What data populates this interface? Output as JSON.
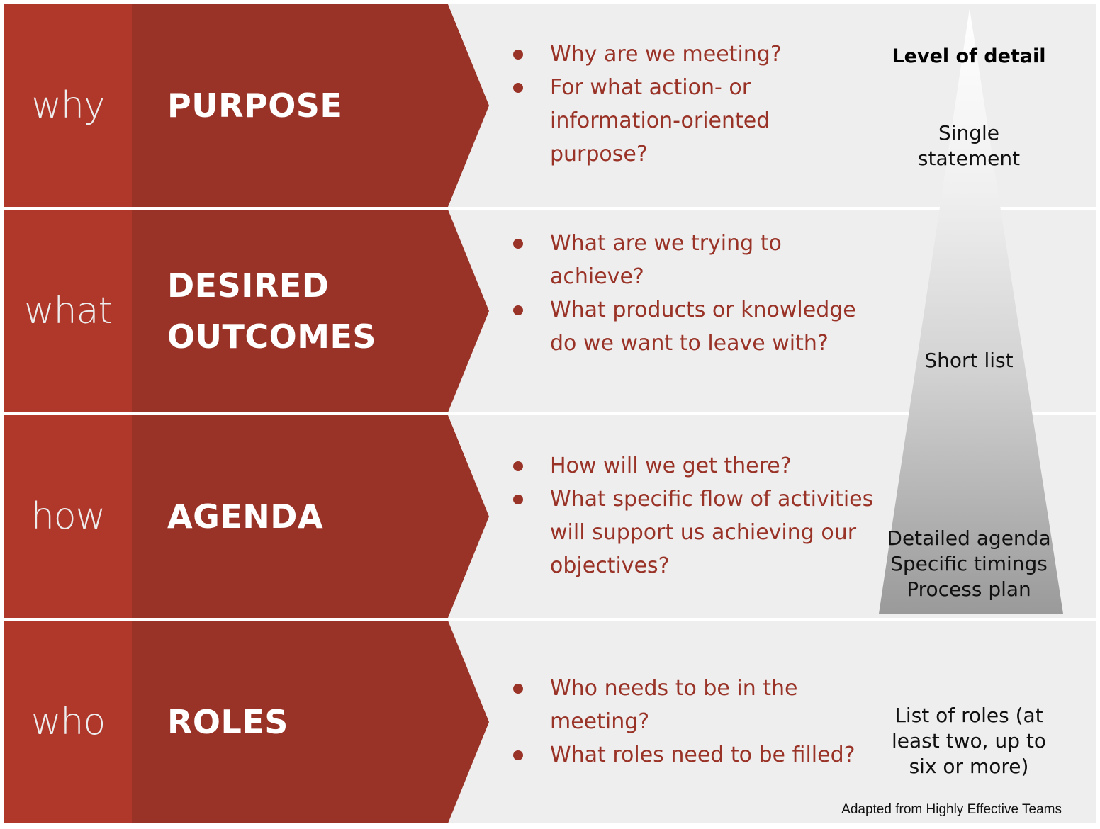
{
  "rows": [
    {
      "side_word": "why",
      "title_lines": [
        "PURPOSE"
      ],
      "bullets": [
        "Why are we meeting?",
        "For what action- or information-oriented purpose?"
      ],
      "detail": "Single statement"
    },
    {
      "side_word": "what",
      "title_lines": [
        "DESIRED",
        "OUTCOMES"
      ],
      "bullets": [
        "What are we trying to achieve?",
        "What products or knowledge do we want to leave with?"
      ],
      "detail": "Short list"
    },
    {
      "side_word": "how",
      "title_lines": [
        "AGENDA"
      ],
      "bullets": [
        "How will we get there?",
        "What specific flow of activities will support us achieving our objectives?"
      ],
      "detail_lines": [
        "Detailed agenda",
        "Specific timings",
        "Process plan"
      ]
    },
    {
      "side_word": "who",
      "title_lines": [
        "ROLES"
      ],
      "bullets": [
        "Who needs to be in the meeting?",
        "What roles need to be filled?"
      ],
      "detail": "List of roles (at least two, up to six or more)"
    }
  ],
  "detail_heading": "Level of detail",
  "footnote": "Adapted from Highly Effective Teams",
  "colors": {
    "dark_red": "#9a3327",
    "side_red": "#b0382b",
    "panel_gray": "#eeeeee"
  }
}
